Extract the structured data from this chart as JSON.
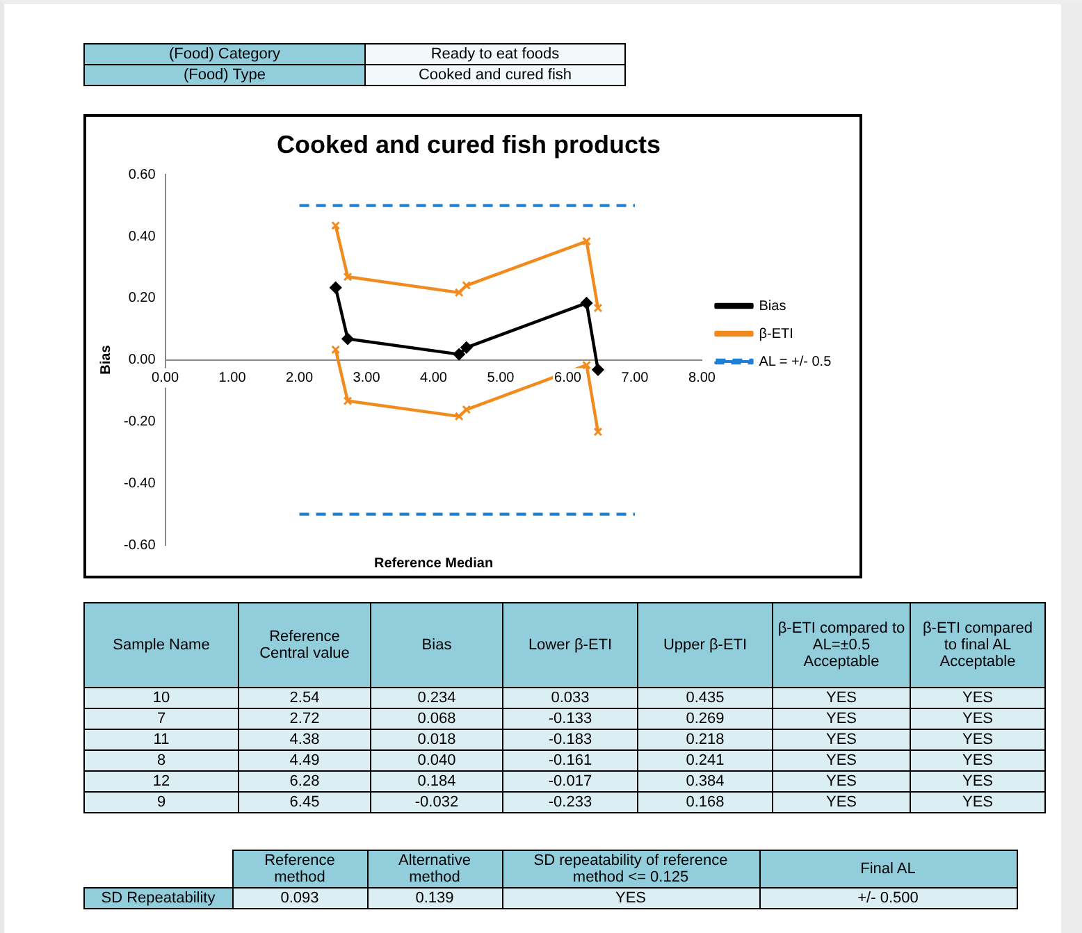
{
  "chart_data": [
    {
      "type": "other",
      "annotations": [
        "(Food) Category",
        "Ready to eat foods",
        "(Food) Type",
        "Cooked and cured fish"
      ]
    },
    {
      "type": "line",
      "title": "Cooked and cured fish products",
      "xlabel": "Reference Median",
      "ylabel": "Bias",
      "xlim": [
        0,
        8
      ],
      "xticks": [
        {
          "value": 0,
          "label": "0.00"
        },
        {
          "value": 1,
          "label": "1.00"
        },
        {
          "value": 2,
          "label": "2.00"
        },
        {
          "value": 3,
          "label": "3.00"
        },
        {
          "value": 4,
          "label": "4.00"
        },
        {
          "value": 5,
          "label": "5.00"
        },
        {
          "value": 6,
          "label": "6.00"
        },
        {
          "value": 7,
          "label": "7.00"
        },
        {
          "value": 8,
          "label": "8.00"
        }
      ],
      "ylim": [
        -0.6,
        0.6
      ],
      "yticks": [
        {
          "value": -0.6,
          "label": "-0.60"
        },
        {
          "value": -0.4,
          "label": "-0.40"
        },
        {
          "value": -0.2,
          "label": "-0.20"
        },
        {
          "value": 0,
          "label": "0.00"
        },
        {
          "value": 0.2,
          "label": "0.20"
        },
        {
          "value": 0.4,
          "label": "0.40"
        },
        {
          "value": 0.6,
          "label": "0.60"
        }
      ],
      "grid": false,
      "legend": "right",
      "series": [
        {
          "name": "Bias",
          "color": "#000000",
          "marker": "diamond",
          "line_style": "solid",
          "x": [
            2.54,
            2.72,
            4.38,
            4.49,
            6.28,
            6.45
          ],
          "values": [
            0.234,
            0.068,
            0.018,
            0.04,
            0.184,
            -0.032
          ]
        },
        {
          "name": "β-ETI",
          "color": "#f28b1e",
          "marker": "cross",
          "line_style": "solid",
          "x": [
            2.54,
            2.72,
            4.38,
            4.49,
            6.28,
            6.45
          ],
          "values": [
            0.435,
            0.269,
            0.218,
            0.241,
            0.384,
            0.168
          ]
        },
        {
          "color": "#f28b1e",
          "marker": "cross",
          "line_style": "solid",
          "x": [
            2.54,
            2.72,
            4.38,
            4.49,
            6.28,
            6.45
          ],
          "values": [
            0.033,
            -0.133,
            -0.183,
            -0.161,
            -0.017,
            -0.233
          ]
        },
        {
          "name": "AL = +/- 0.5",
          "color": "#1f7fd4",
          "marker": "none",
          "line_style": "dashed",
          "x": [
            2,
            7
          ],
          "values": [
            0.5,
            0.5
          ]
        },
        {
          "color": "#1f7fd4",
          "marker": "none",
          "line_style": "dashed",
          "x": [
            2,
            7
          ],
          "values": [
            -0.5,
            -0.5
          ]
        }
      ]
    },
    {
      "type": "other",
      "annotations": [
        "Sample Name",
        "Reference Central value",
        "Bias",
        "Lower β-ETI",
        "Upper β-ETI",
        "β-ETI compared to AL=±0.5 Acceptable",
        "β-ETI compared to final AL Acceptable",
        "10",
        "2.54",
        "0.234",
        "0.033",
        "0.435",
        "YES",
        "YES",
        "7",
        "2.72",
        "0.068",
        "-0.133",
        "0.269",
        "YES",
        "YES",
        "11",
        "4.38",
        "0.018",
        "-0.183",
        "0.218",
        "YES",
        "YES",
        "8",
        "4.49",
        "0.040",
        "-0.161",
        "0.241",
        "YES",
        "YES",
        "12",
        "6.28",
        "0.184",
        "-0.017",
        "0.384",
        "YES",
        "YES",
        "9",
        "6.45",
        "-0.032",
        "-0.233",
        "0.168",
        "YES",
        "YES"
      ]
    },
    {
      "type": "other",
      "annotations": [
        "Reference method",
        "Alternative method",
        "SD repeatability of reference method <= 0.125",
        "Final AL",
        "SD Repeatability",
        "0.093",
        "0.139",
        "YES",
        "+/-  0.500"
      ]
    }
  ]
}
